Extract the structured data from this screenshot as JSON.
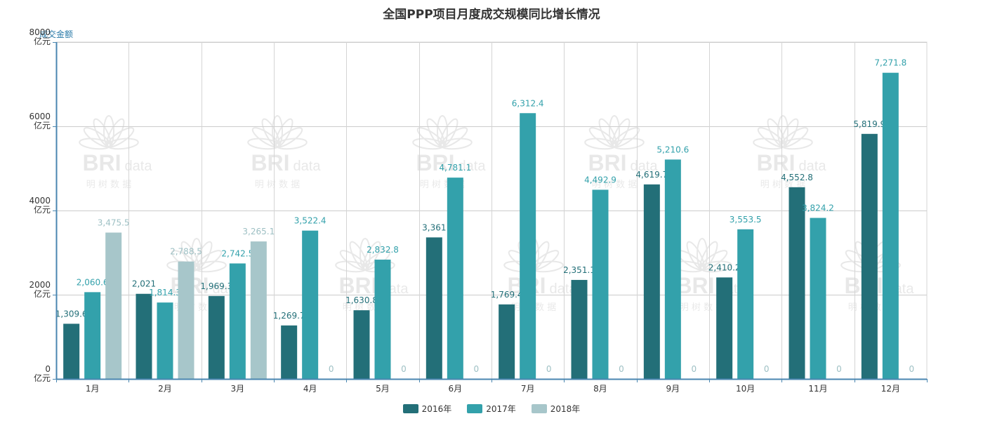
{
  "chart_data": {
    "type": "bar",
    "title": "全国PPP项目月度成交规模同比增长情况",
    "ylabel": "成交金额",
    "yunit": "亿元",
    "ylim": [
      0,
      8000
    ],
    "yticks": [
      0,
      2000,
      4000,
      6000,
      8000
    ],
    "categories": [
      "1月",
      "2月",
      "3月",
      "4月",
      "5月",
      "6月",
      "7月",
      "8月",
      "9月",
      "10月",
      "11月",
      "12月"
    ],
    "series": [
      {
        "name": "2016年",
        "color": "#236f78",
        "values": [
          1309.6,
          2021,
          1969.3,
          1269.7,
          1630.8,
          3361,
          1769.4,
          2351.1,
          4619.7,
          2410.2,
          4552.8,
          5819.9
        ],
        "labels": [
          "1,309.6",
          "2,021",
          "1,969.3",
          "1,269.7",
          "1,630.8",
          "3,361",
          "1,769.4",
          "2,351.1",
          "4,619.7",
          "2,410.2",
          "4,552.8",
          "5,819.9"
        ]
      },
      {
        "name": "2017年",
        "color": "#33a1ab",
        "values": [
          2060.6,
          1814.3,
          2742.5,
          3522.4,
          2832.8,
          4781.1,
          6312.4,
          4492.9,
          5210.6,
          3553.5,
          3824.2,
          7271.8
        ],
        "labels": [
          "2,060.6",
          "1,814.3",
          "2,742.5",
          "3,522.4",
          "2,832.8",
          "4,781.1",
          "6,312.4",
          "4,492.9",
          "5,210.6",
          "3,553.5",
          "3,824.2",
          "7,271.8"
        ]
      },
      {
        "name": "2018年",
        "color": "#a7c6ca",
        "values": [
          3475.5,
          2788.5,
          3265.1,
          0,
          0,
          0,
          0,
          0,
          0,
          0,
          0,
          0
        ],
        "labels": [
          "3,475.5",
          "2,788.5",
          "3,265.1",
          "0",
          "0",
          "0",
          "0",
          "0",
          "0",
          "0",
          "0",
          "0"
        ]
      }
    ],
    "grid": true,
    "legend": "bottom-center"
  },
  "watermark": {
    "brand": "BRI",
    "sub": "data",
    "cn": "明 树 数 据"
  }
}
